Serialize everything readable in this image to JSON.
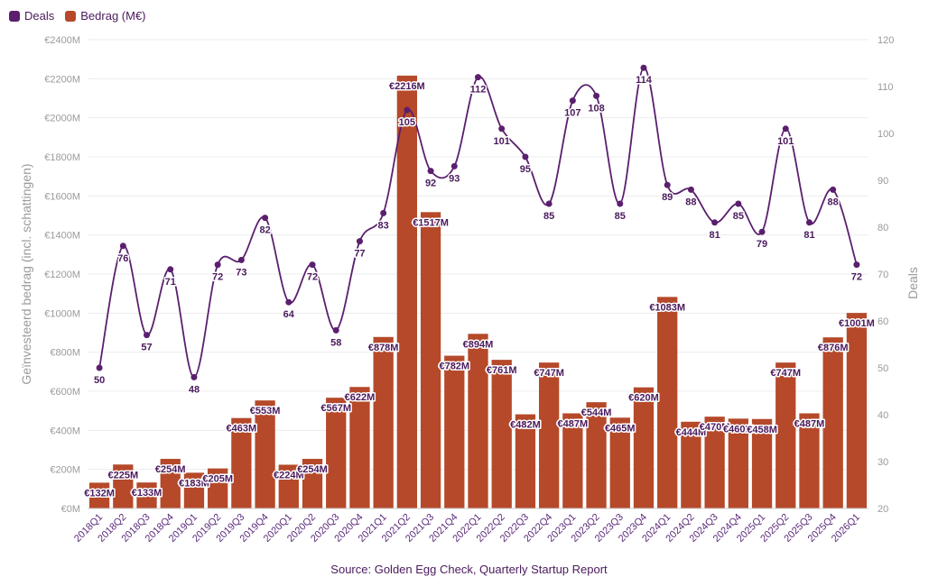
{
  "legend": {
    "deals": {
      "label": "Deals",
      "color": "#5b1f6e"
    },
    "amount": {
      "label": "Bedrag (M€)",
      "color": "#b5492a"
    }
  },
  "source": "Source: Golden Egg Check, Quarterly Startup Report",
  "chart_data": {
    "type": "bar",
    "categories": [
      "2018Q1",
      "2018Q2",
      "2018Q3",
      "2018Q4",
      "2019Q1",
      "2019Q2",
      "2019Q3",
      "2019Q4",
      "2020Q1",
      "2020Q2",
      "2020Q3",
      "2020Q4",
      "2021Q1",
      "2021Q2",
      "2021Q3",
      "2021Q4",
      "2022Q1",
      "2022Q2",
      "2022Q3",
      "2022Q4",
      "2023Q1",
      "2023Q2",
      "2023Q3",
      "2023Q4",
      "2024Q1",
      "2024Q2",
      "2024Q3",
      "2024Q4",
      "2025Q1",
      "2025Q2",
      "2025Q3",
      "2025Q4",
      "2026Q1"
    ],
    "series": [
      {
        "name": "Bedrag (M€)",
        "axis": "left",
        "type": "bar",
        "values": [
          132,
          225,
          133,
          254,
          183,
          205,
          463,
          553,
          224,
          254,
          567,
          622,
          878,
          2216,
          1517,
          782,
          894,
          761,
          482,
          747,
          487,
          544,
          465,
          620,
          1083,
          444,
          470,
          460,
          458,
          747,
          487,
          876,
          1001
        ],
        "labels": [
          "€132M",
          "€225M",
          "€133M",
          "€254M",
          "€183M",
          "€205M",
          "€463M",
          "€553M",
          "€224M",
          "€254M",
          "€567M",
          "€622M",
          "€878M",
          "€2216M",
          "€1517M",
          "€782M",
          "€894M",
          "€761M",
          "€482M",
          "€747M",
          "€487M",
          "€544M",
          "€465M",
          "€620M",
          "€1083M",
          "€444M",
          "€470M",
          "€460M",
          "€458M",
          "€747M",
          "€487M",
          "€876M",
          "€1001M"
        ]
      },
      {
        "name": "Deals",
        "axis": "right",
        "type": "line",
        "values": [
          50,
          76,
          57,
          71,
          48,
          72,
          73,
          82,
          64,
          72,
          58,
          77,
          83,
          105,
          92,
          93,
          112,
          101,
          95,
          85,
          107,
          108,
          85,
          114,
          89,
          88,
          81,
          85,
          79,
          101,
          81,
          88,
          72
        ]
      }
    ],
    "ylabel_left": "Geïnvesteerd bedrag (incl. schattingen)",
    "ylabel_right": "Deals",
    "ylim_left": [
      0,
      2400
    ],
    "ylim_right": [
      20,
      120
    ],
    "yticks_left": [
      "€0M",
      "€200M",
      "€400M",
      "€600M",
      "€800M",
      "€1000M",
      "€1200M",
      "€1400M",
      "€1600M",
      "€1800M",
      "€2000M",
      "€2200M",
      "€2400M"
    ],
    "yticks_right": [
      "20",
      "30",
      "40",
      "50",
      "60",
      "70",
      "80",
      "90",
      "100",
      "110",
      "120"
    ],
    "legend_position": "top-left",
    "grid": true
  }
}
